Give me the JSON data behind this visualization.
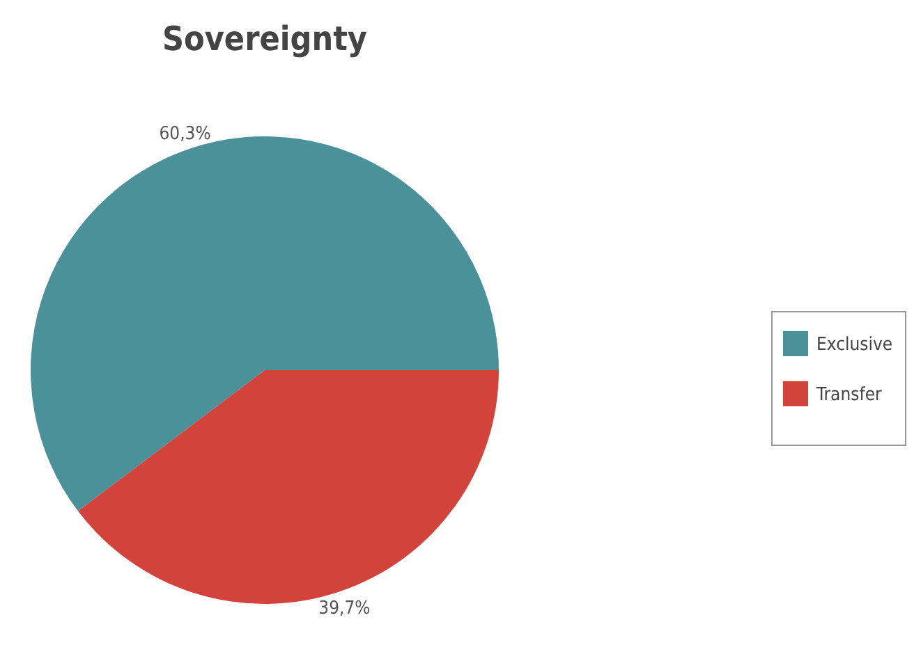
{
  "chart_data": {
    "type": "pie",
    "title": "Sovereignty",
    "categories": [
      "Exclusive",
      "Transfer"
    ],
    "values": [
      60.3,
      39.7
    ],
    "colors": [
      "#4a9199",
      "#d2443b"
    ],
    "value_labels": [
      "60,3%",
      "39,7%"
    ],
    "legend": "right"
  }
}
